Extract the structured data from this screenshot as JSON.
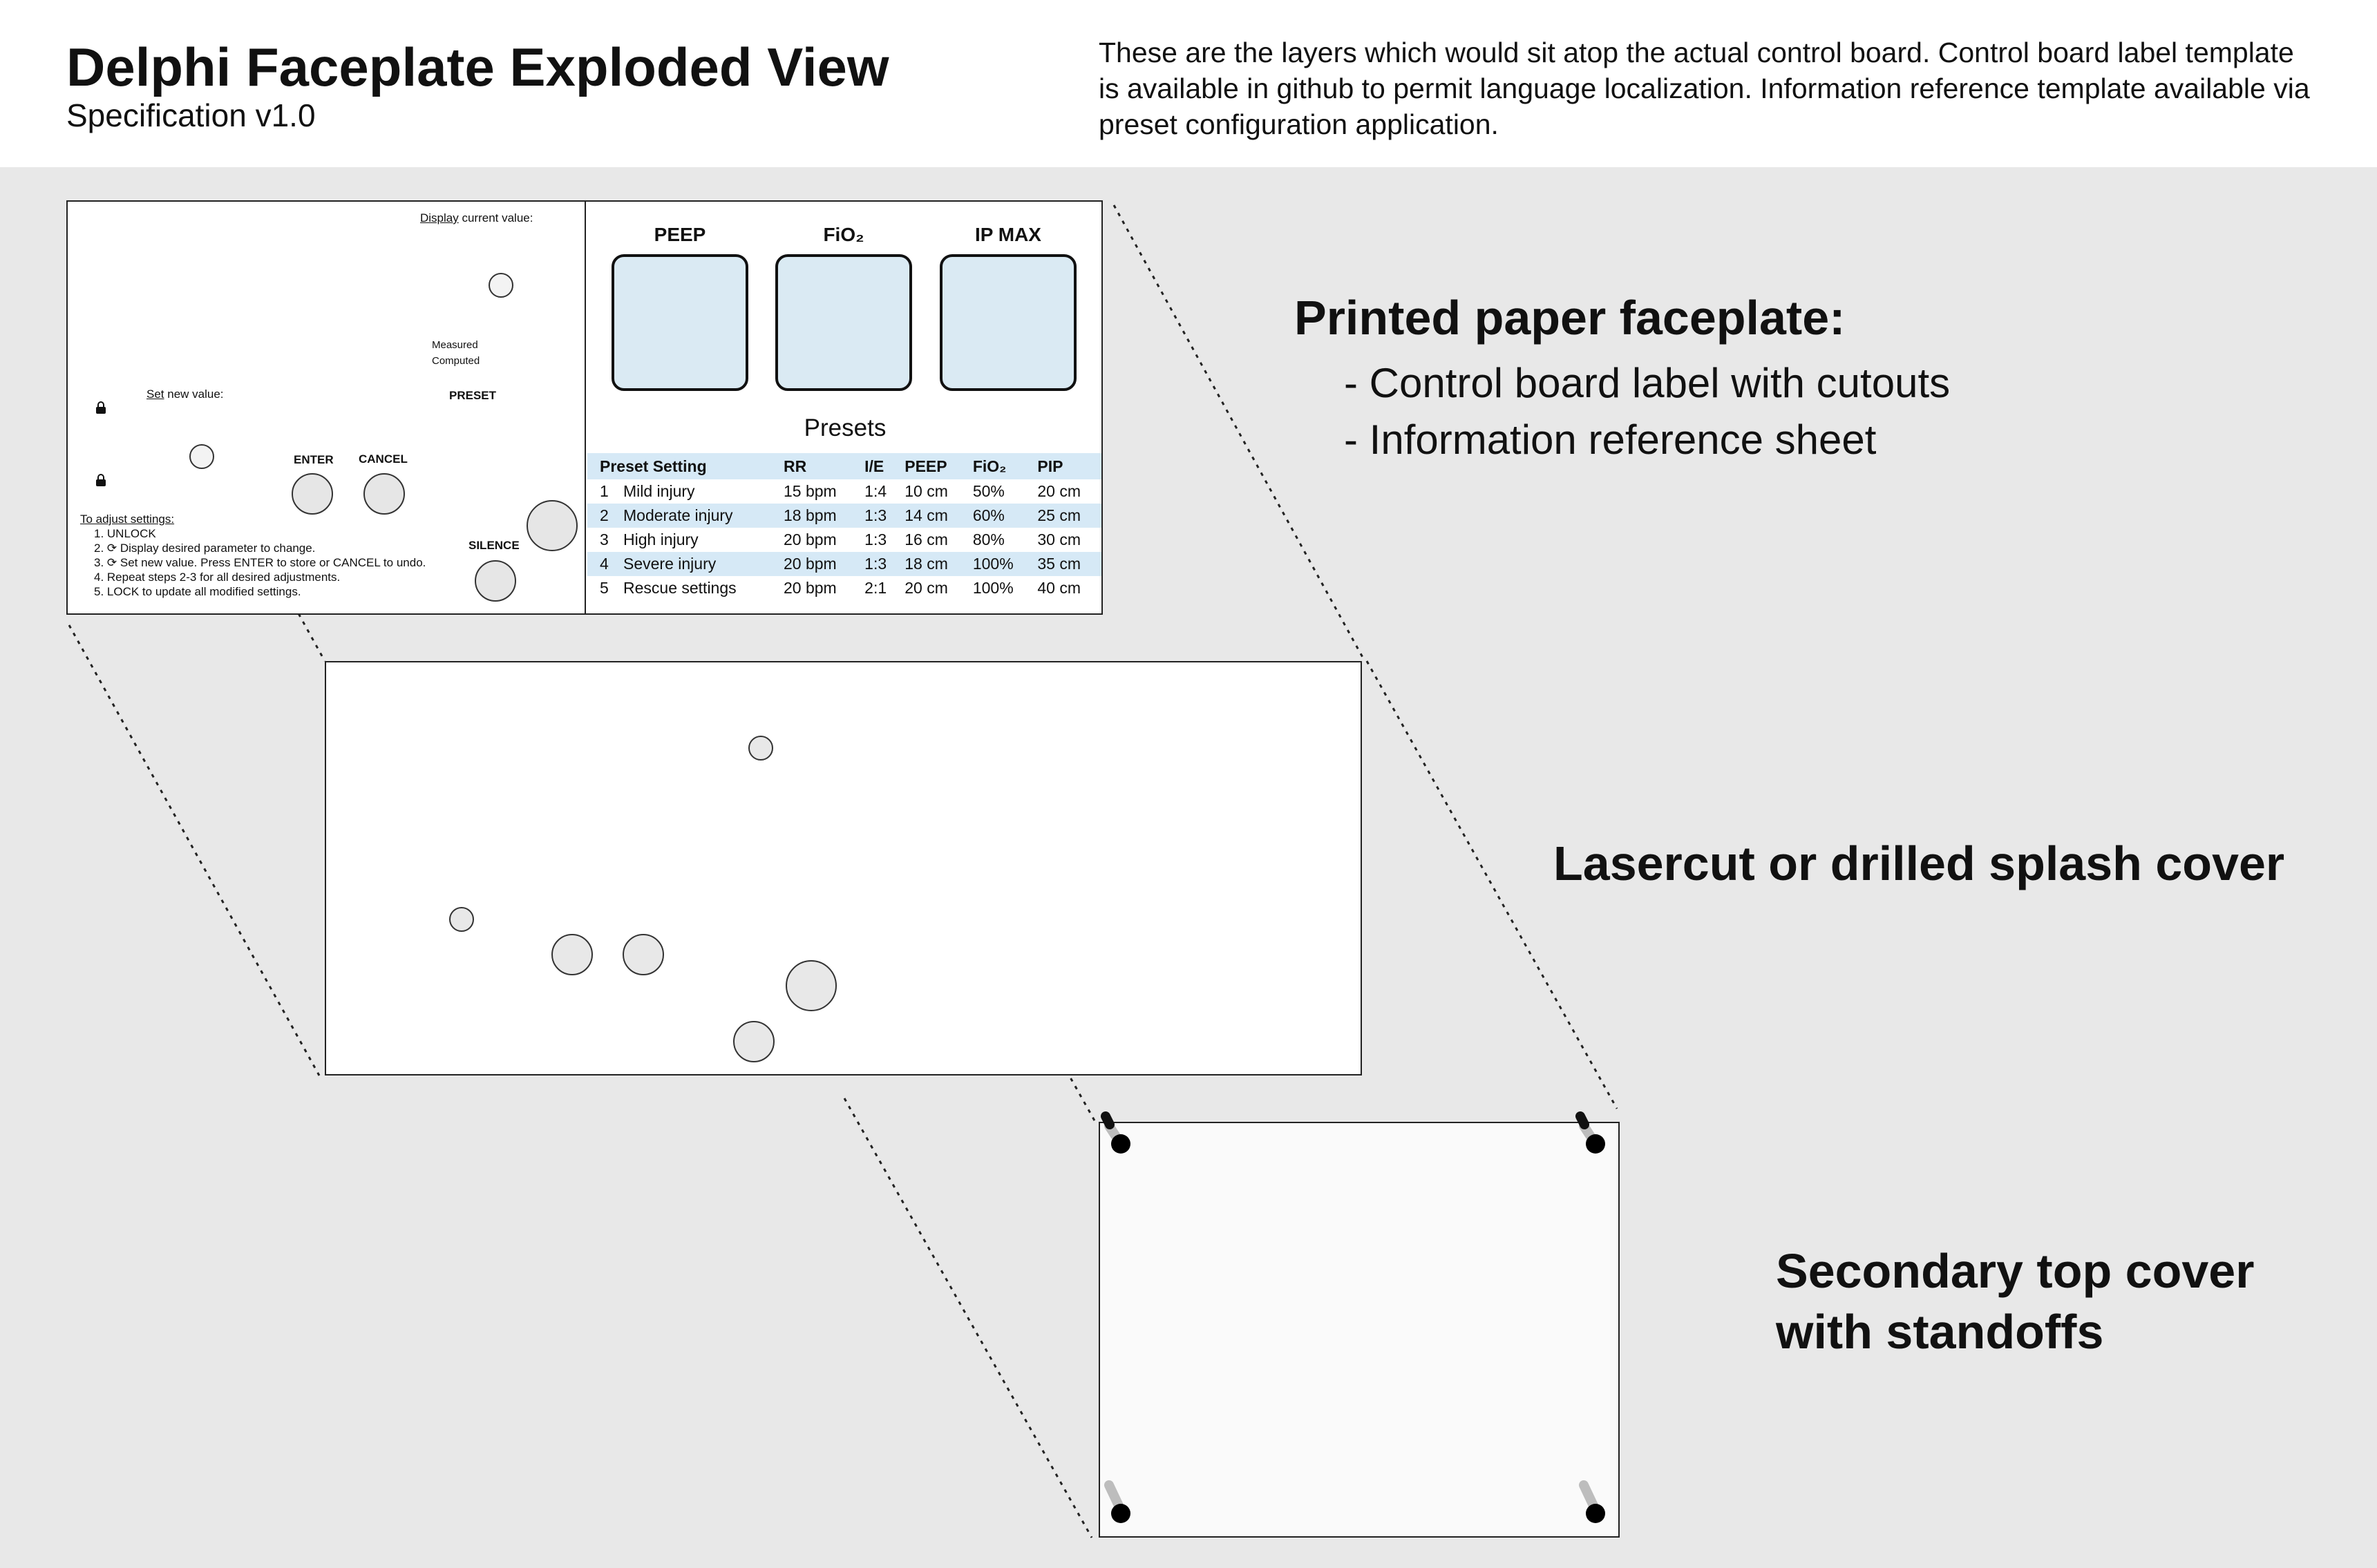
{
  "header": {
    "title": "Delphi Faceplate Exploded View",
    "subtitle": "Specification v1.0",
    "description": "These are the layers which would sit atop the actual control board. Control board label template is available in github to permit language localization. Information reference template available via preset configuration application."
  },
  "faceplate": {
    "display_label_prefix": "Display",
    "display_label_suffix": " current value:",
    "measured": "Measured",
    "computed": "Computed",
    "preset": "PRESET",
    "set_label_prefix": "Set",
    "set_label_suffix": " new value:",
    "enter": "ENTER",
    "cancel": "CANCEL",
    "silence": "SILENCE",
    "instructions_title": "To adjust settings:",
    "instructions": [
      "1. UNLOCK",
      "2. ⟳ Display desired parameter to change.",
      "3. ⟳ Set new value. Press ENTER to store or CANCEL to undo.",
      "4. Repeat steps 2-3 for all desired adjustments.",
      "5. LOCK to update all modified settings."
    ],
    "displays": [
      "PEEP",
      "FiO₂",
      "IP MAX"
    ],
    "presets_title": "Presets",
    "table": {
      "headers": [
        "Preset Setting",
        "RR",
        "I/E",
        "PEEP",
        "FiO₂",
        "PIP"
      ],
      "rows": [
        {
          "num": "1",
          "name": "Mild injury",
          "rr": "15 bpm",
          "ie": "1:4",
          "peep": "10 cm",
          "fio2": "50%",
          "pip": "20 cm"
        },
        {
          "num": "2",
          "name": "Moderate injury",
          "rr": "18 bpm",
          "ie": "1:3",
          "peep": "14 cm",
          "fio2": "60%",
          "pip": "25 cm"
        },
        {
          "num": "3",
          "name": "High injury",
          "rr": "20 bpm",
          "ie": "1:3",
          "peep": "16 cm",
          "fio2": "80%",
          "pip": "30 cm"
        },
        {
          "num": "4",
          "name": "Severe injury",
          "rr": "20 bpm",
          "ie": "1:3",
          "peep": "18 cm",
          "fio2": "100%",
          "pip": "35 cm"
        },
        {
          "num": "5",
          "name": "Rescue settings",
          "rr": "20 bpm",
          "ie": "2:1",
          "peep": "20 cm",
          "fio2": "100%",
          "pip": "40 cm"
        }
      ]
    }
  },
  "callouts": {
    "printed_title": "Printed paper faceplate:",
    "printed_items": [
      "- Control board label with cutouts",
      "- Information reference sheet"
    ],
    "splash": "Lasercut or drilled splash cover",
    "secondary_line1": "Secondary top cover",
    "secondary_line2": "with standoffs"
  },
  "colors": {
    "background": "#e8e8e8",
    "table_highlight": "#d6e9f6",
    "display_fill": "#daeaf3"
  }
}
